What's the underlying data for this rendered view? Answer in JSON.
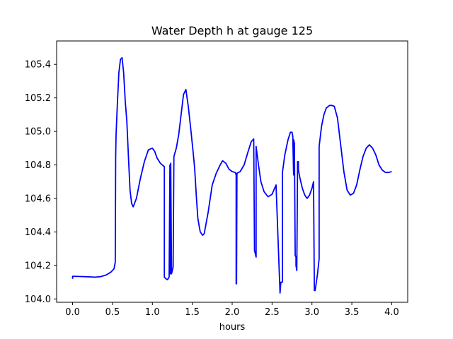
{
  "chart_data": {
    "type": "line",
    "title": "Water Depth h at gauge 125",
    "xlabel": "hours",
    "ylabel": "",
    "xlim": [
      -0.2,
      4.2
    ],
    "ylim": [
      103.98,
      105.54
    ],
    "xticks": [
      0.0,
      0.5,
      1.0,
      1.5,
      2.0,
      2.5,
      3.0,
      3.5,
      4.0
    ],
    "xtick_labels": [
      "0.0",
      "0.5",
      "1.0",
      "1.5",
      "2.0",
      "2.5",
      "3.0",
      "3.5",
      "4.0"
    ],
    "yticks": [
      104.0,
      104.2,
      104.4,
      104.6,
      104.8,
      105.0,
      105.2,
      105.4
    ],
    "ytick_labels": [
      "104.0",
      "104.2",
      "104.4",
      "104.6",
      "104.8",
      "105.0",
      "105.2",
      "105.4"
    ],
    "grid": false,
    "series": [
      {
        "color": "#0000ff",
        "x": [
          0.0,
          0.0,
          0.02,
          0.1,
          0.2,
          0.28,
          0.35,
          0.42,
          0.48,
          0.52,
          0.535,
          0.54,
          0.545,
          0.56,
          0.58,
          0.6,
          0.62,
          0.64,
          0.66,
          0.68,
          0.7,
          0.72,
          0.74,
          0.76,
          0.8,
          0.85,
          0.9,
          0.95,
          1.0,
          1.03,
          1.06,
          1.1,
          1.15,
          1.15,
          1.17,
          1.19,
          1.21,
          1.22,
          1.22,
          1.23,
          1.23,
          1.24,
          1.25,
          1.26,
          1.27,
          1.27,
          1.3,
          1.33,
          1.36,
          1.39,
          1.42,
          1.45,
          1.48,
          1.51,
          1.53,
          1.55,
          1.57,
          1.6,
          1.63,
          1.65,
          1.7,
          1.75,
          1.8,
          1.85,
          1.88,
          1.92,
          1.96,
          2.0,
          2.04,
          2.05,
          2.05,
          2.055,
          2.06,
          2.1,
          2.15,
          2.2,
          2.24,
          2.27,
          2.28,
          2.29,
          2.3,
          2.3,
          2.33,
          2.36,
          2.4,
          2.45,
          2.5,
          2.55,
          2.6,
          2.6,
          2.61,
          2.63,
          2.63,
          2.66,
          2.7,
          2.73,
          2.75,
          2.76,
          2.77,
          2.77,
          2.78,
          2.79,
          2.8,
          2.8,
          2.81,
          2.82,
          2.83,
          2.83,
          2.85,
          2.88,
          2.91,
          2.94,
          2.97,
          3.0,
          3.02,
          3.03,
          3.04,
          3.04,
          3.07,
          3.09,
          3.09,
          3.12,
          3.15,
          3.18,
          3.22,
          3.25,
          3.28,
          3.32,
          3.36,
          3.4,
          3.44,
          3.48,
          3.52,
          3.56,
          3.6,
          3.64,
          3.68,
          3.72,
          3.76,
          3.8,
          3.84,
          3.88,
          3.92,
          3.96,
          4.0
        ],
        "y": [
          104.12,
          104.135,
          104.135,
          104.134,
          104.132,
          104.13,
          104.133,
          104.143,
          104.16,
          104.18,
          104.22,
          104.85,
          104.98,
          105.15,
          105.35,
          105.43,
          105.44,
          105.35,
          105.18,
          105.06,
          104.85,
          104.65,
          104.57,
          104.55,
          104.6,
          104.72,
          104.82,
          104.89,
          104.9,
          104.88,
          104.84,
          104.81,
          104.79,
          104.13,
          104.12,
          104.115,
          104.13,
          104.8,
          104.15,
          104.15,
          104.81,
          104.15,
          104.17,
          104.19,
          104.85,
          104.85,
          104.9,
          104.98,
          105.1,
          105.22,
          105.25,
          105.15,
          105.02,
          104.88,
          104.78,
          104.62,
          104.48,
          104.4,
          104.38,
          104.39,
          104.52,
          104.68,
          104.75,
          104.8,
          104.825,
          104.81,
          104.775,
          104.76,
          104.755,
          104.74,
          104.09,
          104.09,
          104.75,
          104.76,
          104.8,
          104.88,
          104.94,
          104.955,
          104.29,
          104.27,
          104.25,
          104.91,
          104.8,
          104.7,
          104.64,
          104.61,
          104.625,
          104.68,
          104.035,
          104.035,
          104.1,
          104.1,
          104.755,
          104.86,
          104.95,
          104.995,
          104.995,
          104.97,
          104.74,
          104.95,
          104.93,
          104.26,
          104.25,
          104.2,
          104.17,
          104.82,
          104.82,
          104.77,
          104.72,
          104.66,
          104.62,
          104.6,
          104.62,
          104.66,
          104.7,
          104.05,
          104.05,
          104.05,
          104.15,
          104.24,
          104.91,
          105.03,
          105.1,
          105.14,
          105.155,
          105.155,
          105.15,
          105.08,
          104.92,
          104.76,
          104.65,
          104.62,
          104.63,
          104.68,
          104.77,
          104.85,
          104.9,
          104.92,
          104.9,
          104.86,
          104.8,
          104.77,
          104.755,
          104.755,
          104.76
        ]
      }
    ]
  }
}
